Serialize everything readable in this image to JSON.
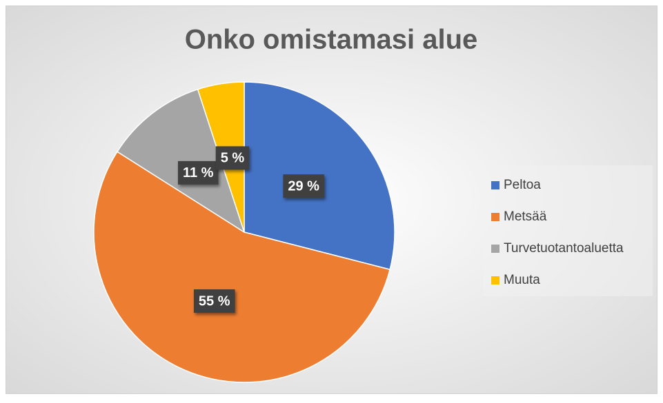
{
  "chart_data": {
    "type": "pie",
    "title": "Onko omistamasi alue",
    "categories": [
      "Peltoa",
      "Metsää",
      "Turvetuotantoaluetta",
      "Muuta"
    ],
    "values": [
      29,
      55,
      11,
      5
    ],
    "value_labels": [
      "29 %",
      "55 %",
      "11 %",
      "5 %"
    ],
    "colors": [
      "#4472c4",
      "#ed7d31",
      "#a5a5a5",
      "#ffc000"
    ],
    "legend": "right"
  }
}
